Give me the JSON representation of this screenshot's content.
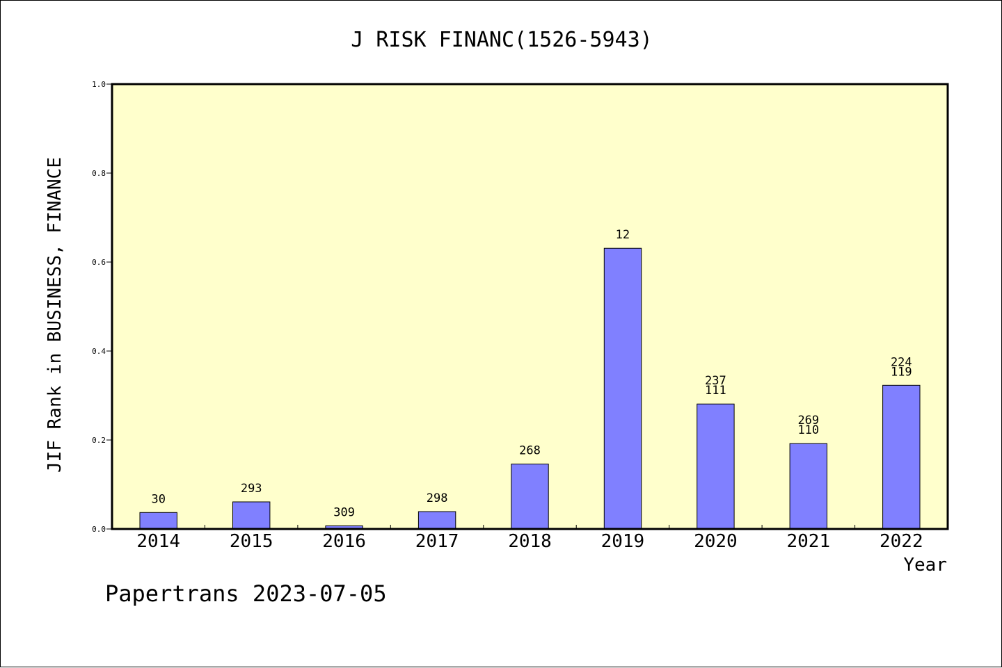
{
  "chart_data": {
    "type": "bar",
    "title": "J RISK FINANC(1526-5943)",
    "xlabel": "Year",
    "ylabel": "JIF Rank in BUSINESS, FINANCE",
    "ylim": [
      0,
      1
    ],
    "yticks": [
      "0.0",
      "0.2",
      "0.4",
      "0.6",
      "0.8",
      "1.0"
    ],
    "categories": [
      "2014",
      "2015",
      "2016",
      "2017",
      "2018",
      "2019",
      "2020",
      "2021",
      "2022"
    ],
    "values": [
      0.037,
      0.061,
      0.007,
      0.039,
      0.146,
      0.631,
      0.281,
      0.192,
      0.323
    ],
    "bar_labels": [
      [
        "30"
      ],
      [
        "293"
      ],
      [
        "309"
      ],
      [
        "298"
      ],
      [
        "268"
      ],
      [
        "12"
      ],
      [
        "237",
        "111"
      ],
      [
        "269",
        "110"
      ],
      [
        "224",
        "119"
      ]
    ],
    "grid": false,
    "colors": {
      "bar_fill": "#8080ff",
      "bar_stroke": "#000000",
      "plot_background": "#ffffcc"
    }
  },
  "footer": {
    "credit": "Papertrans 2023-07-05"
  }
}
